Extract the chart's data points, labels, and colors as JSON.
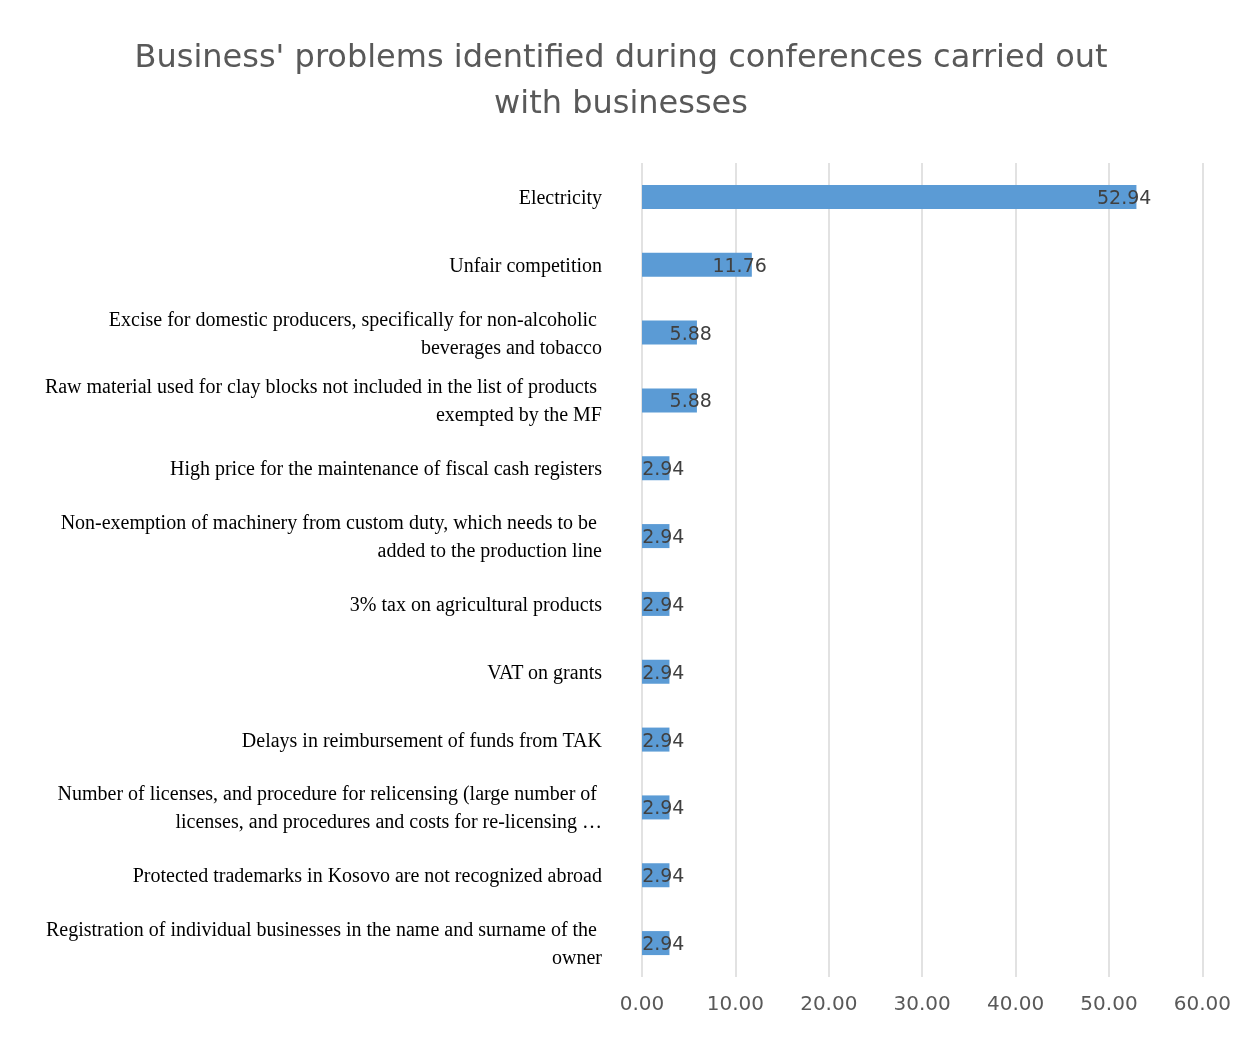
{
  "chart_data": {
    "type": "bar",
    "orientation": "horizontal",
    "title": "Business' problems identified during conferences carried out\nwith businesses",
    "categories": [
      "Electricity",
      "Unfair competition",
      "Excise for domestic producers, specifically for non-alcoholic beverages and tobacco",
      "Raw material used for clay blocks not included in the list of products exempted by the MF",
      "High price for the maintenance of fiscal cash registers",
      "Non-exemption of machinery from custom duty, which needs to be added to the production line",
      "3% tax on agricultural products",
      "VAT on grants",
      "Delays in reimbursement of funds from TAK",
      "Number of licenses, and procedure for relicensing (large number of licenses, and procedures and costs for re-licensing …",
      "Protected trademarks in Kosovo are not recognized abroad",
      "Registration of individual businesses in the name and surname of the owner"
    ],
    "values": [
      52.94,
      11.76,
      5.88,
      5.88,
      2.94,
      2.94,
      2.94,
      2.94,
      2.94,
      2.94,
      2.94,
      2.94
    ],
    "color": "#5b9bd5",
    "xlim": [
      0,
      60
    ],
    "xticks": [
      {
        "value": 0,
        "label": "0.00"
      },
      {
        "value": 10,
        "label": "10.00"
      },
      {
        "value": 20,
        "label": "20.00"
      },
      {
        "value": 30,
        "label": "30.00"
      },
      {
        "value": 40,
        "label": "40.00"
      },
      {
        "value": 50,
        "label": "50.00"
      },
      {
        "value": 60,
        "label": "60.00"
      }
    ],
    "grid": "x",
    "data_labels": true
  }
}
